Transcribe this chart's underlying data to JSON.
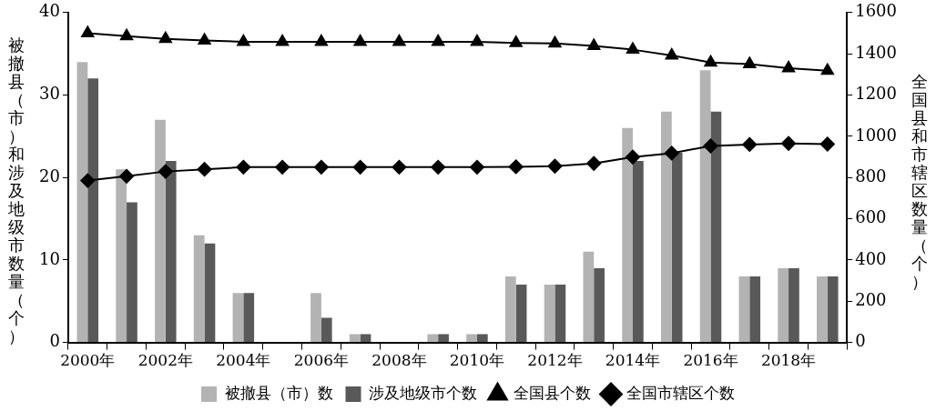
{
  "chart_data": {
    "type": "bar",
    "ylabel": "被撤县（市）和涉及地级市数量（个）",
    "y2label": "全国县和市辖区数量（个）",
    "categories": [
      "2000年",
      null,
      "2002年",
      null,
      "2004年",
      null,
      "2006年",
      null,
      "2008年",
      null,
      "2010年",
      null,
      "2012年",
      null,
      "2014年",
      null,
      "2016年",
      null,
      "2018年",
      null
    ],
    "series": [
      {
        "name": "被撤县（市）数",
        "color": "#b3b3b3",
        "values": [
          34,
          21,
          27,
          13,
          6,
          0,
          6,
          1,
          0,
          1,
          1,
          8,
          7,
          11,
          26,
          28,
          33,
          8,
          9,
          8
        ]
      },
      {
        "name": "涉及地级市个数",
        "color": "#595959",
        "values": [
          32,
          17,
          22,
          12,
          6,
          0,
          3,
          1,
          0,
          1,
          1,
          7,
          7,
          9,
          22,
          23,
          28,
          8,
          9,
          8
        ]
      },
      {
        "name": "全国县个数",
        "type": "line",
        "axis": "y2",
        "marker": "triangle",
        "color": "#000000",
        "values": [
          1500,
          1486,
          1472,
          1465,
          1458,
          1458,
          1458,
          1458,
          1458,
          1458,
          1458,
          1452,
          1450,
          1438,
          1420,
          1392,
          1358,
          1350,
          1330,
          1318
        ]
      },
      {
        "name": "全国市辖区个数",
        "type": "line",
        "axis": "y2",
        "marker": "diamond",
        "color": "#000000",
        "values": [
          785,
          806,
          829,
          840,
          850,
          850,
          850,
          850,
          850,
          850,
          850,
          852,
          855,
          868,
          899,
          918,
          953,
          960,
          965,
          962
        ]
      }
    ],
    "ylim": [
      0,
      40
    ],
    "yticks": [
      0,
      10,
      20,
      30,
      40
    ],
    "y2lim": [
      0,
      1600
    ],
    "y2ticks": [
      0,
      200,
      400,
      600,
      800,
      1000,
      1200,
      1400,
      1600
    ],
    "grid": false,
    "legend": "bottom"
  }
}
